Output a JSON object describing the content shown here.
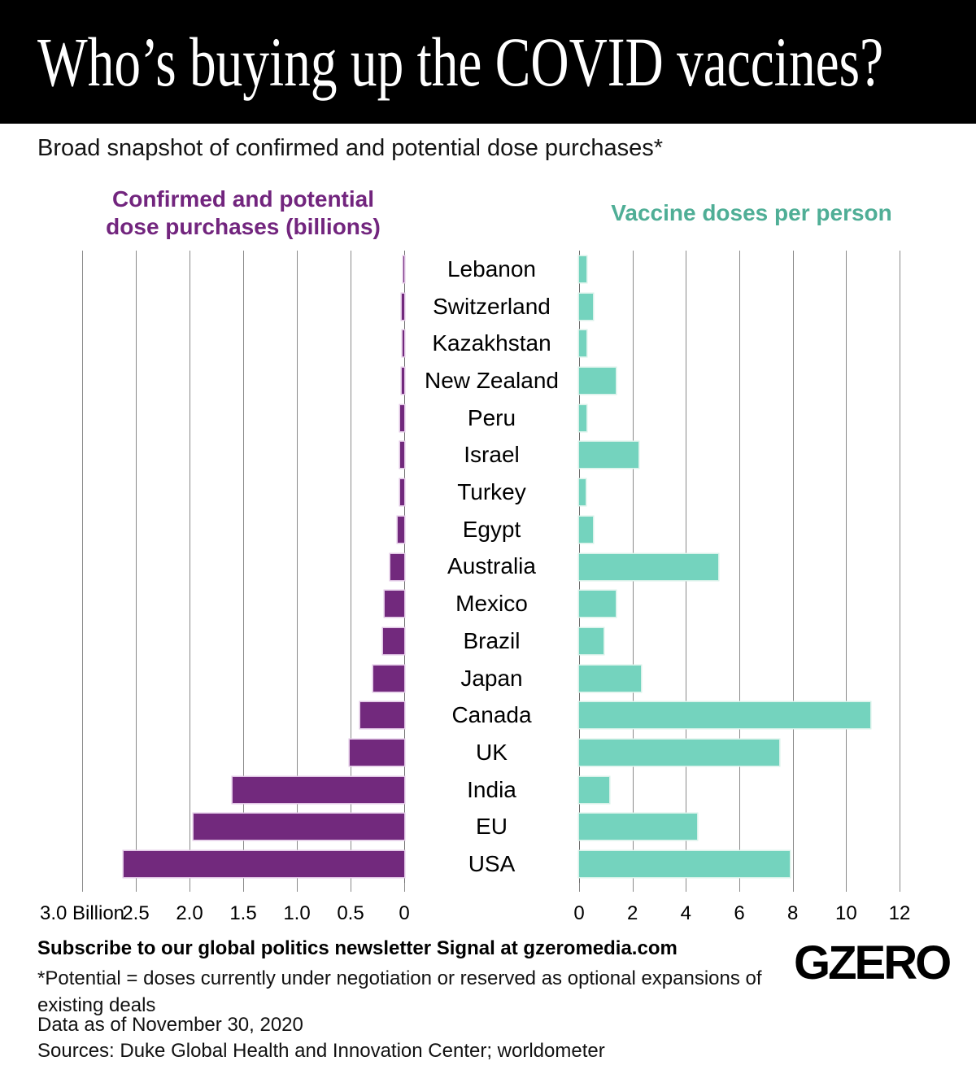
{
  "header": {
    "title": "Who’s buying up the COVID vaccines?"
  },
  "subtitle": "Broad snapshot of confirmed and potential dose purchases*",
  "chart_data": {
    "type": "bar",
    "orientation": "horizontal",
    "categories": [
      "Lebanon",
      "Switzerland",
      "Kazakhstan",
      "New Zealand",
      "Peru",
      "Israel",
      "Turkey",
      "Egypt",
      "Australia",
      "Mexico",
      "Brazil",
      "Japan",
      "Canada",
      "UK",
      "India",
      "EU",
      "USA"
    ],
    "series": [
      {
        "name": "Confirmed and potential dose purchases (billions)",
        "side": "left",
        "color": "#72297d",
        "values": [
          0.005,
          0.025,
          0.015,
          0.025,
          0.035,
          0.04,
          0.04,
          0.06,
          0.13,
          0.18,
          0.2,
          0.29,
          0.41,
          0.51,
          1.6,
          1.96,
          2.61
        ]
      },
      {
        "name": "Vaccine doses per person",
        "side": "right",
        "color": "#74d3be",
        "values": [
          0.28,
          0.52,
          0.27,
          1.37,
          0.28,
          2.22,
          0.23,
          0.53,
          5.2,
          1.37,
          0.92,
          2.3,
          10.9,
          7.5,
          1.13,
          4.43,
          7.9
        ]
      }
    ],
    "left_axis": {
      "title_line1": "Confirmed and potential",
      "title_line2": "dose purchases (billions)",
      "max": 3.0,
      "direction": "right-to-left",
      "grid": true,
      "ticks": [
        {
          "label": "3.0 Billion",
          "value": 3.0
        },
        {
          "label": "2.5",
          "value": 2.5
        },
        {
          "label": "2.0",
          "value": 2.0
        },
        {
          "label": "1.5",
          "value": 1.5
        },
        {
          "label": "1.0",
          "value": 1.0
        },
        {
          "label": "0.5",
          "value": 0.5
        },
        {
          "label": "0",
          "value": 0.0
        }
      ]
    },
    "right_axis": {
      "title": "Vaccine doses per person",
      "max": 12,
      "direction": "left-to-right",
      "grid": true,
      "ticks": [
        {
          "label": "0",
          "value": 0
        },
        {
          "label": "2",
          "value": 2
        },
        {
          "label": "4",
          "value": 4
        },
        {
          "label": "6",
          "value": 6
        },
        {
          "label": "8",
          "value": 8
        },
        {
          "label": "10",
          "value": 10
        },
        {
          "label": "12",
          "value": 12
        }
      ]
    }
  },
  "footer": {
    "subscribe": "Subscribe to our global politics newsletter Signal at gzeromedia.com",
    "note": "*Potential = doses currently under negotiation or reserved as optional expansions of existing deals",
    "data_as_of": "Data as of November 30, 2020",
    "sources": "Sources: Duke Global Health and Innovation Center; worldometer",
    "logo_text": "GZERO"
  },
  "colors": {
    "purple_bar": "#72297d",
    "purple_halo": "#e0c6e4",
    "teal_bar": "#74d3be",
    "teal_halo": "#d9f2ea",
    "purple_title": "#72257e",
    "teal_title": "#4fae96",
    "gridline": "#8a8a8a",
    "zero_line": "#6f6f6f",
    "header_bg": "#000000",
    "text": "#111111"
  }
}
